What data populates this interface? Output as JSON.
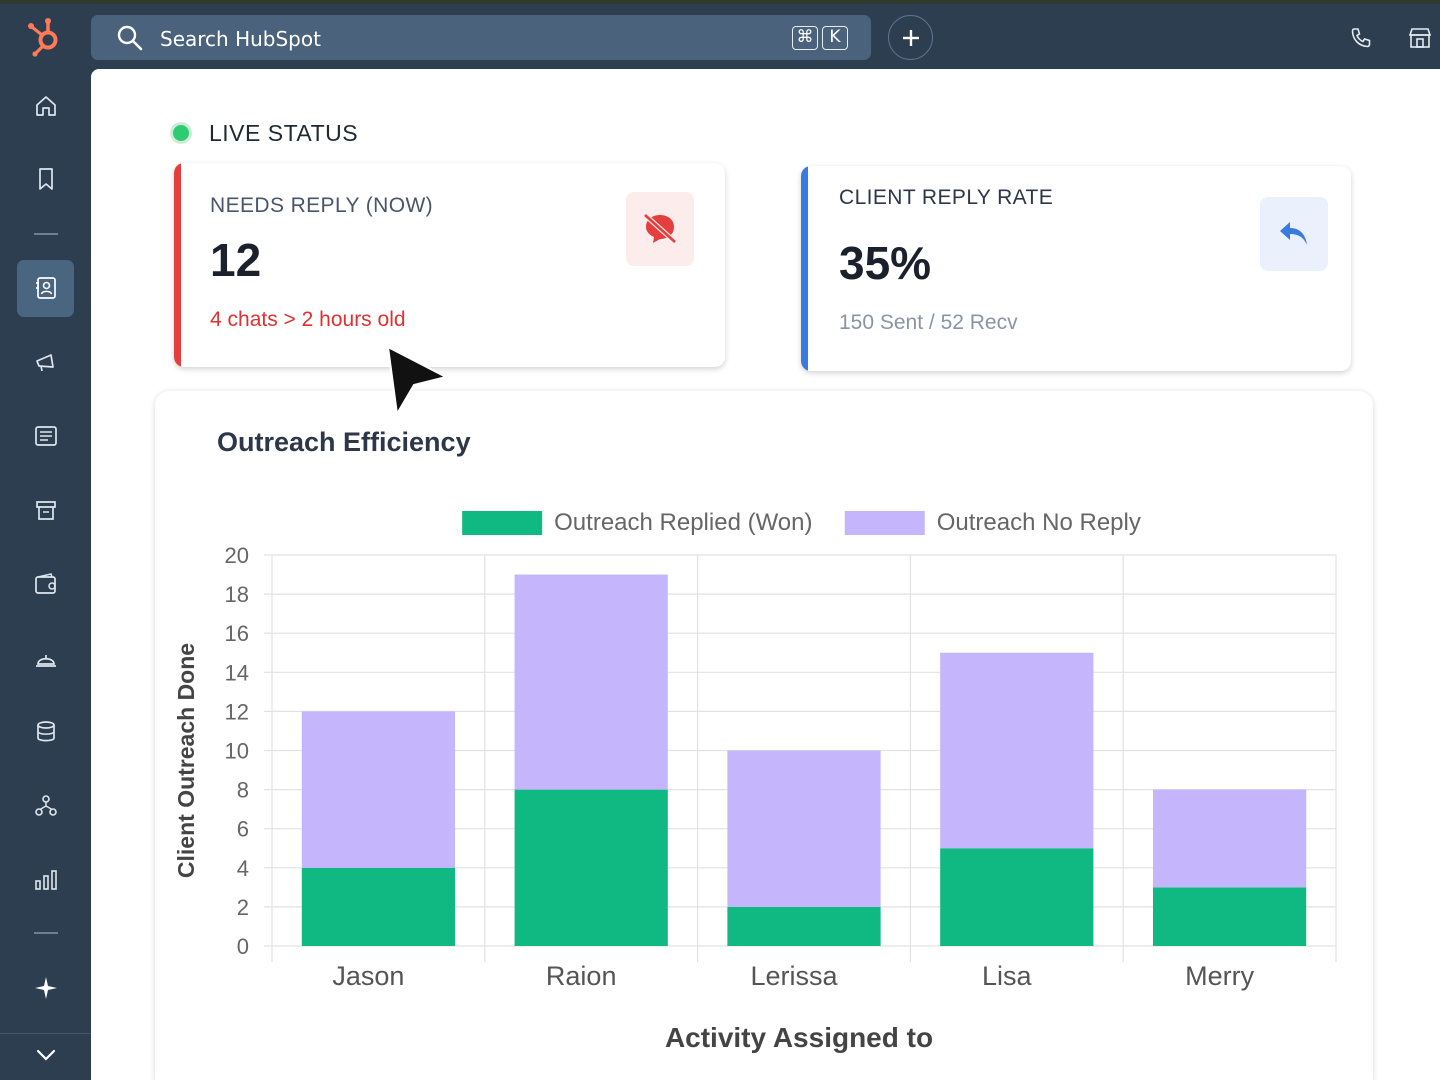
{
  "header": {
    "search_placeholder": "Search HubSpot",
    "shortcut_cmd": "⌘",
    "shortcut_key": "K"
  },
  "sidebar": {
    "items": [
      {
        "icon": "home-icon"
      },
      {
        "icon": "bookmark-icon"
      },
      {
        "icon": "contacts-icon",
        "active": true
      },
      {
        "icon": "marketing-icon"
      },
      {
        "icon": "content-icon"
      },
      {
        "icon": "sales-icon"
      },
      {
        "icon": "commerce-icon"
      },
      {
        "icon": "service-icon"
      },
      {
        "icon": "data-icon"
      },
      {
        "icon": "automation-icon"
      },
      {
        "icon": "reporting-icon"
      },
      {
        "icon": "ai-sparkle-icon"
      }
    ]
  },
  "live_status": {
    "label": "LIVE STATUS",
    "dot_color": "#2ecc71"
  },
  "needs_reply": {
    "title": "NEEDS REPLY (NOW)",
    "value": "12",
    "subtext": "4 chats > 2 hours old",
    "accent": "#e53e3e"
  },
  "reply_rate": {
    "title": "CLIENT REPLY RATE",
    "value": "35%",
    "subtext": "150 Sent / 52 Recv",
    "accent": "#3b7be0"
  },
  "chart_data": {
    "type": "bar",
    "stacked": true,
    "title": "Outreach Efficiency",
    "xlabel": "Activity Assigned to",
    "ylabel": "Client Outreach Done",
    "categories": [
      "Jason",
      "Raion",
      "Lerissa",
      "Lisa",
      "Merry"
    ],
    "series": [
      {
        "name": "Outreach Replied (Won)",
        "values": [
          4,
          8,
          2,
          5,
          3
        ],
        "color": "#10b981"
      },
      {
        "name": "Outreach No Reply",
        "values": [
          8,
          11,
          8,
          10,
          5
        ],
        "color": "#c4b5fd"
      }
    ],
    "ylim": [
      0,
      20
    ],
    "yticks": [
      "0",
      "2",
      "4",
      "6",
      "8",
      "10",
      "12",
      "14",
      "16",
      "18",
      "20"
    ],
    "grid": true,
    "legend": "top"
  }
}
